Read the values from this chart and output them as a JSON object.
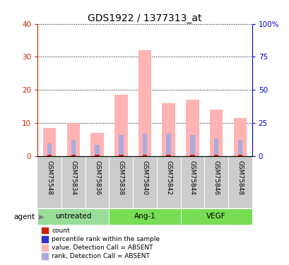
{
  "title": "GDS1922 / 1377313_at",
  "samples": [
    "GSM75548",
    "GSM75834",
    "GSM75836",
    "GSM75838",
    "GSM75840",
    "GSM75842",
    "GSM75844",
    "GSM75846",
    "GSM75848"
  ],
  "pink_values": [
    8.5,
    10.0,
    7.0,
    18.5,
    32.0,
    16.0,
    17.0,
    14.0,
    11.5
  ],
  "blue_values": [
    3.5,
    4.5,
    3.0,
    6.0,
    6.5,
    6.5,
    6.0,
    5.0,
    4.5
  ],
  "red_small_values": [
    0.3,
    0.3,
    0.3,
    0.3,
    0.3,
    0.3,
    0.3,
    0.3,
    0.3
  ],
  "ylim_left": [
    0,
    40
  ],
  "ylim_right": [
    0,
    100
  ],
  "yticks_left": [
    0,
    10,
    20,
    30,
    40
  ],
  "yticks_right": [
    0,
    25,
    50,
    75,
    100
  ],
  "ytick_labels_right": [
    "0",
    "25",
    "50",
    "75",
    "100%"
  ],
  "left_tick_color": "#cc2200",
  "right_tick_color": "#0000cc",
  "bar_width": 0.55,
  "pink_color": "#ffb3b3",
  "blue_color": "#aaaadd",
  "red_color": "#cc2200",
  "bg_plot": "#ffffff",
  "bg_xtick": "#cccccc",
  "group_labels": [
    "untreated",
    "Ang-1",
    "VEGF"
  ],
  "group_ranges": [
    [
      0,
      2
    ],
    [
      3,
      5
    ],
    [
      6,
      8
    ]
  ],
  "group_colors": [
    "#99dd99",
    "#77dd55",
    "#77dd55"
  ],
  "legend_items": [
    {
      "label": "count",
      "color": "#cc2200"
    },
    {
      "label": "percentile rank within the sample",
      "color": "#3333cc"
    },
    {
      "label": "value, Detection Call = ABSENT",
      "color": "#ffb3b3"
    },
    {
      "label": "rank, Detection Call = ABSENT",
      "color": "#aaaadd"
    }
  ]
}
